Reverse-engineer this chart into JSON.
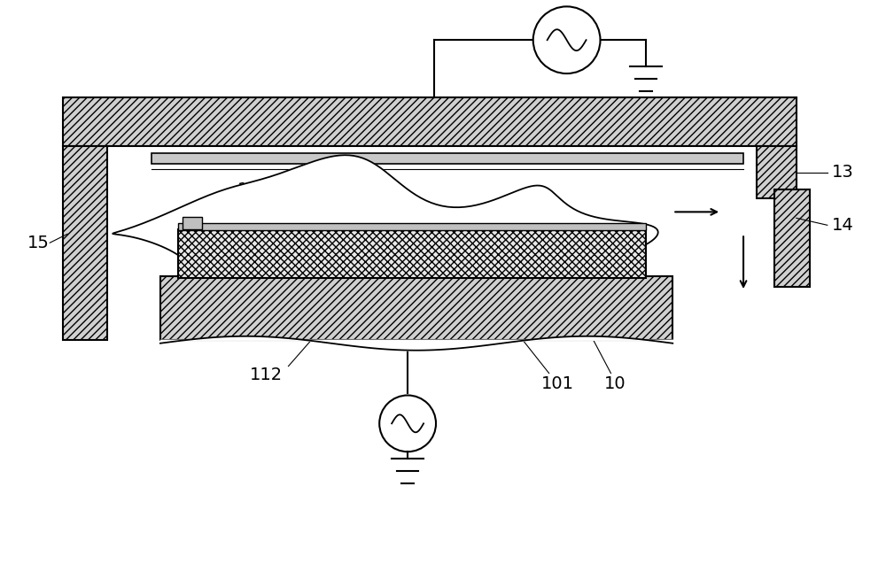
{
  "bg_color": "#ffffff",
  "line_color": "#000000",
  "fig_width": 10.0,
  "fig_height": 6.54,
  "dpi": 100
}
